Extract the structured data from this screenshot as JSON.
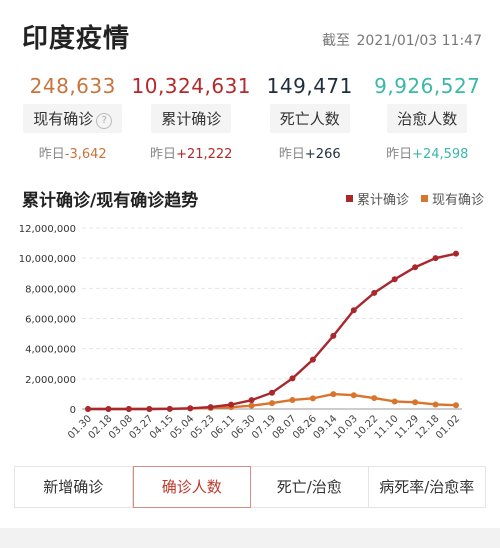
{
  "title": "印度疫情",
  "as_of": {
    "prefix": "截至",
    "datetime": "2021/01/03 11:47"
  },
  "stats": [
    {
      "value": "248,633",
      "label": "现有确诊",
      "delta_prefix": "昨日",
      "delta": "-3,642",
      "color": "#c8743c",
      "help": "?"
    },
    {
      "value": "10,324,631",
      "label": "累计确诊",
      "delta_prefix": "昨日",
      "delta": "+21,222",
      "color": "#b22a2a"
    },
    {
      "value": "149,471",
      "label": "死亡人数",
      "delta_prefix": "昨日",
      "delta": "+266",
      "color": "#1f2d3d"
    },
    {
      "value": "9,926,527",
      "label": "治愈人数",
      "delta_prefix": "昨日",
      "delta": "+24,598",
      "color": "#3bb8a8"
    }
  ],
  "chart_title": "累计确诊/现有确诊趋势",
  "tabs": [
    {
      "label": "新增确诊",
      "active": false
    },
    {
      "label": "确诊人数",
      "active": true
    },
    {
      "label": "死亡/治愈",
      "active": false
    },
    {
      "label": "病死率/治愈率",
      "active": false
    }
  ],
  "chart_data": {
    "type": "line",
    "categories": [
      "01.30",
      "02.18",
      "03.08",
      "03.27",
      "04.15",
      "05.04",
      "05.23",
      "06.11",
      "06.30",
      "07.19",
      "08.07",
      "08.26",
      "09.14",
      "10.03",
      "10.22",
      "11.10",
      "11.29",
      "12.18",
      "01.02"
    ],
    "ylim": [
      0,
      12000000
    ],
    "yticks": [
      0,
      2000000,
      4000000,
      6000000,
      8000000,
      10000000,
      12000000
    ],
    "ytick_labels": [
      "0",
      "2,000,000",
      "4,000,000",
      "6,000,000",
      "8,000,000",
      "10,000,000",
      "12,000,000"
    ],
    "grid": true,
    "legend_position": "top-right",
    "series": [
      {
        "name": "累计确诊",
        "color": "#a8282e",
        "values": [
          1,
          3,
          40,
          700,
          12000,
          47000,
          125000,
          290000,
          585000,
          1080000,
          2030000,
          3270000,
          4850000,
          6550000,
          7700000,
          8600000,
          9400000,
          10000000,
          10300000
        ]
      },
      {
        "name": "现有确诊",
        "color": "#d9742c",
        "values": [
          1,
          3,
          35,
          650,
          10000,
          30000,
          70000,
          120000,
          220000,
          390000,
          600000,
          705000,
          990000,
          915000,
          725000,
          500000,
          445000,
          300000,
          250000
        ]
      }
    ]
  }
}
